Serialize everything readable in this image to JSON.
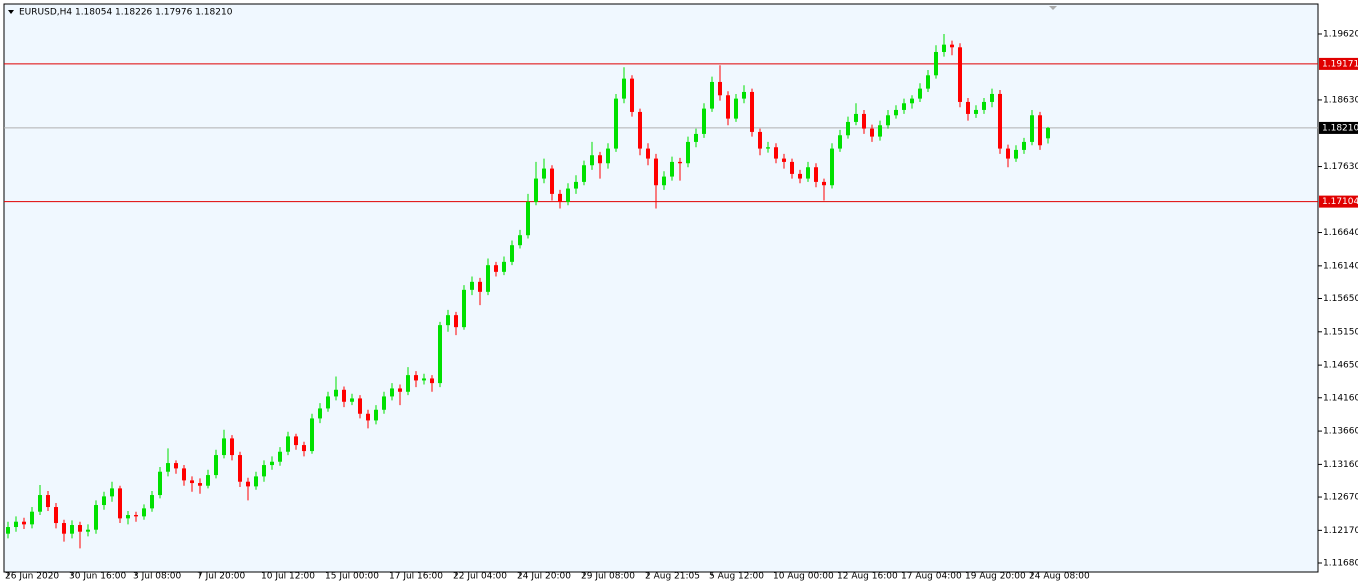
{
  "chart_data": {
    "type": "candlestick",
    "title": "EURUSD,H4  1.18054 1.18226 1.17976 1.18210",
    "up_color": "#00e000",
    "down_color": "#ff0000",
    "background": "#f0f8ff",
    "ylim": [
      1.1156,
      1.20055
    ],
    "yticks": [
      {
        "value": 1.1962,
        "label": "1.19620"
      },
      {
        "value": 1.1863,
        "label": "1.18630"
      },
      {
        "value": 1.1763,
        "label": "1.17630"
      },
      {
        "value": 1.1664,
        "label": "1.16640"
      },
      {
        "value": 1.1614,
        "label": "1.16140"
      },
      {
        "value": 1.1565,
        "label": "1.15650"
      },
      {
        "value": 1.1515,
        "label": "1.15150"
      },
      {
        "value": 1.1465,
        "label": "1.14650"
      },
      {
        "value": 1.1416,
        "label": "1.14160"
      },
      {
        "value": 1.1366,
        "label": "1.13660"
      },
      {
        "value": 1.1316,
        "label": "1.13160"
      },
      {
        "value": 1.1267,
        "label": "1.12670"
      },
      {
        "value": 1.1217,
        "label": "1.12170"
      },
      {
        "value": 1.1168,
        "label": "1.11680"
      }
    ],
    "hlines": [
      {
        "value": 1.19171,
        "label": "1.19171",
        "color": "#e00000"
      },
      {
        "value": 1.1821,
        "label": "1.18210",
        "color": "#b0b0b0",
        "label_color": "#000000"
      },
      {
        "value": 1.17104,
        "label": "1.17104",
        "color": "#e00000"
      }
    ],
    "categories": [
      "26 Jun 2020",
      null,
      null,
      null,
      null,
      null,
      null,
      null,
      "30 Jun 16:00",
      null,
      null,
      null,
      null,
      null,
      null,
      null,
      "3 Jul 08:00",
      null,
      null,
      null,
      null,
      null,
      null,
      null,
      "7 Jul 20:00",
      null,
      null,
      null,
      null,
      null,
      null,
      null,
      "10 Jul 12:00",
      null,
      null,
      null,
      null,
      null,
      null,
      null,
      "15 Jul 00:00",
      null,
      null,
      null,
      null,
      null,
      null,
      null,
      "17 Jul 16:00",
      null,
      null,
      null,
      null,
      null,
      null,
      null,
      "22 Jul 04:00",
      null,
      null,
      null,
      null,
      null,
      null,
      null,
      "24 Jul 20:00",
      null,
      null,
      null,
      null,
      null,
      null,
      null,
      "29 Jul 08:00",
      null,
      null,
      null,
      null,
      null,
      null,
      null,
      "2 Aug 21:05",
      null,
      null,
      null,
      null,
      null,
      null,
      null,
      "5 Aug 12:00",
      null,
      null,
      null,
      null,
      null,
      null,
      null,
      "10 Aug 00:00",
      null,
      null,
      null,
      null,
      null,
      null,
      null,
      "12 Aug 16:00",
      null,
      null,
      null,
      null,
      null,
      null,
      null,
      "17 Aug 04:00",
      null,
      null,
      null,
      null,
      null,
      null,
      null,
      "19 Aug 20:00",
      null,
      null,
      null,
      null,
      null,
      null,
      null,
      "24 Aug 08:00",
      null,
      null
    ],
    "values": [
      [
        1.1212,
        1.123,
        1.1205,
        1.1222
      ],
      [
        1.1222,
        1.1238,
        1.1215,
        1.123
      ],
      [
        1.123,
        1.1236,
        1.1219,
        1.1226
      ],
      [
        1.1226,
        1.1252,
        1.122,
        1.1245
      ],
      [
        1.1245,
        1.1285,
        1.124,
        1.127
      ],
      [
        1.127,
        1.1276,
        1.1246,
        1.1252
      ],
      [
        1.1252,
        1.1258,
        1.122,
        1.1228
      ],
      [
        1.1228,
        1.1233,
        1.12,
        1.1212
      ],
      [
        1.1212,
        1.1232,
        1.1205,
        1.1225
      ],
      [
        1.1225,
        1.123,
        1.119,
        1.1215
      ],
      [
        1.1215,
        1.1226,
        1.1208,
        1.1218
      ],
      [
        1.1218,
        1.1262,
        1.1212,
        1.1255
      ],
      [
        1.1255,
        1.1275,
        1.1248,
        1.1268
      ],
      [
        1.1268,
        1.129,
        1.126,
        1.128
      ],
      [
        1.128,
        1.1284,
        1.1228,
        1.1235
      ],
      [
        1.1235,
        1.1246,
        1.1226,
        1.124
      ],
      [
        1.124,
        1.1245,
        1.123,
        1.1238
      ],
      [
        1.1238,
        1.1256,
        1.1233,
        1.125
      ],
      [
        1.125,
        1.1276,
        1.1245,
        1.127
      ],
      [
        1.127,
        1.1312,
        1.1265,
        1.1305
      ],
      [
        1.1305,
        1.134,
        1.1298,
        1.1318
      ],
      [
        1.1318,
        1.1322,
        1.1302,
        1.131
      ],
      [
        1.131,
        1.1315,
        1.1284,
        1.1292
      ],
      [
        1.1292,
        1.1298,
        1.1275,
        1.1288
      ],
      [
        1.1288,
        1.1295,
        1.1272,
        1.1284
      ],
      [
        1.1284,
        1.1308,
        1.128,
        1.13
      ],
      [
        1.13,
        1.1338,
        1.1295,
        1.133
      ],
      [
        1.133,
        1.1368,
        1.1325,
        1.1355
      ],
      [
        1.1355,
        1.136,
        1.1322,
        1.133
      ],
      [
        1.133,
        1.1335,
        1.1282,
        1.129
      ],
      [
        1.129,
        1.1296,
        1.1262,
        1.1283
      ],
      [
        1.1283,
        1.1305,
        1.1278,
        1.1298
      ],
      [
        1.1298,
        1.1322,
        1.129,
        1.1315
      ],
      [
        1.1315,
        1.1328,
        1.1308,
        1.132
      ],
      [
        1.132,
        1.1342,
        1.1314,
        1.1335
      ],
      [
        1.1335,
        1.1365,
        1.133,
        1.1358
      ],
      [
        1.1358,
        1.1362,
        1.1338,
        1.1345
      ],
      [
        1.1345,
        1.135,
        1.1328,
        1.1336
      ],
      [
        1.1336,
        1.1392,
        1.1332,
        1.1385
      ],
      [
        1.1385,
        1.1408,
        1.1378,
        1.14
      ],
      [
        1.14,
        1.1425,
        1.1395,
        1.1418
      ],
      [
        1.1418,
        1.1448,
        1.1412,
        1.1428
      ],
      [
        1.1428,
        1.1433,
        1.1402,
        1.141
      ],
      [
        1.141,
        1.1422,
        1.1405,
        1.1415
      ],
      [
        1.1415,
        1.142,
        1.1385,
        1.1392
      ],
      [
        1.1392,
        1.1398,
        1.137,
        1.1382
      ],
      [
        1.1382,
        1.1405,
        1.1376,
        1.1398
      ],
      [
        1.1398,
        1.1425,
        1.1392,
        1.1418
      ],
      [
        1.1418,
        1.1438,
        1.1412,
        1.143
      ],
      [
        1.143,
        1.1436,
        1.1405,
        1.1425
      ],
      [
        1.1425,
        1.1462,
        1.142,
        1.145
      ],
      [
        1.145,
        1.1456,
        1.1432,
        1.1442
      ],
      [
        1.1442,
        1.1452,
        1.1436,
        1.1445
      ],
      [
        1.1445,
        1.145,
        1.1425,
        1.1438
      ],
      [
        1.1438,
        1.153,
        1.1432,
        1.1525
      ],
      [
        1.1525,
        1.1548,
        1.1515,
        1.154
      ],
      [
        1.154,
        1.1545,
        1.151,
        1.1522
      ],
      [
        1.1522,
        1.1585,
        1.1518,
        1.1578
      ],
      [
        1.1578,
        1.1598,
        1.157,
        1.159
      ],
      [
        1.159,
        1.1596,
        1.1555,
        1.1575
      ],
      [
        1.1575,
        1.1625,
        1.157,
        1.1615
      ],
      [
        1.1615,
        1.162,
        1.1598,
        1.1605
      ],
      [
        1.1605,
        1.1628,
        1.16,
        1.162
      ],
      [
        1.162,
        1.1652,
        1.1615,
        1.1645
      ],
      [
        1.1645,
        1.1668,
        1.164,
        1.166
      ],
      [
        1.166,
        1.1722,
        1.1655,
        1.171
      ],
      [
        1.171,
        1.177,
        1.1705,
        1.1745
      ],
      [
        1.1745,
        1.1775,
        1.1738,
        1.176
      ],
      [
        1.176,
        1.1765,
        1.1712,
        1.1722
      ],
      [
        1.1722,
        1.1728,
        1.17,
        1.171
      ],
      [
        1.171,
        1.1738,
        1.1705,
        1.173
      ],
      [
        1.173,
        1.175,
        1.1722,
        1.174
      ],
      [
        1.174,
        1.1772,
        1.1735,
        1.1765
      ],
      [
        1.1765,
        1.18,
        1.1758,
        1.178
      ],
      [
        1.178,
        1.1785,
        1.1745,
        1.1768
      ],
      [
        1.1768,
        1.1798,
        1.176,
        1.179
      ],
      [
        1.179,
        1.1872,
        1.1785,
        1.1865
      ],
      [
        1.1865,
        1.1912,
        1.1858,
        1.1895
      ],
      [
        1.1895,
        1.19,
        1.1838,
        1.1845
      ],
      [
        1.1845,
        1.185,
        1.178,
        1.179
      ],
      [
        1.179,
        1.1798,
        1.1765,
        1.1775
      ],
      [
        1.1775,
        1.1782,
        1.17,
        1.1735
      ],
      [
        1.1735,
        1.1756,
        1.1728,
        1.1748
      ],
      [
        1.1748,
        1.1778,
        1.1742,
        1.177
      ],
      [
        1.177,
        1.1776,
        1.1742,
        1.1768
      ],
      [
        1.1768,
        1.1808,
        1.1762,
        1.18
      ],
      [
        1.18,
        1.182,
        1.1792,
        1.1812
      ],
      [
        1.1812,
        1.1858,
        1.1806,
        1.185
      ],
      [
        1.185,
        1.1898,
        1.1845,
        1.189
      ],
      [
        1.189,
        1.1915,
        1.1862,
        1.187
      ],
      [
        1.187,
        1.1876,
        1.1825,
        1.1835
      ],
      [
        1.1835,
        1.1872,
        1.183,
        1.1865
      ],
      [
        1.1865,
        1.1885,
        1.1858,
        1.1875
      ],
      [
        1.1875,
        1.188,
        1.1808,
        1.1815
      ],
      [
        1.1815,
        1.182,
        1.178,
        1.179
      ],
      [
        1.179,
        1.18,
        1.1784,
        1.1792
      ],
      [
        1.1792,
        1.1798,
        1.1768,
        1.1775
      ],
      [
        1.1775,
        1.1782,
        1.176,
        1.177
      ],
      [
        1.177,
        1.1775,
        1.1745,
        1.1752
      ],
      [
        1.1752,
        1.1758,
        1.1738,
        1.1745
      ],
      [
        1.1745,
        1.177,
        1.174,
        1.1762
      ],
      [
        1.1762,
        1.1768,
        1.1732,
        1.174
      ],
      [
        1.174,
        1.1745,
        1.1712,
        1.1735
      ],
      [
        1.1735,
        1.1798,
        1.173,
        1.179
      ],
      [
        1.179,
        1.1818,
        1.1785,
        1.181
      ],
      [
        1.181,
        1.1838,
        1.1805,
        1.183
      ],
      [
        1.183,
        1.1858,
        1.1825,
        1.1842
      ],
      [
        1.1842,
        1.1848,
        1.1812,
        1.182
      ],
      [
        1.182,
        1.1826,
        1.18,
        1.1808
      ],
      [
        1.1808,
        1.1832,
        1.1802,
        1.1825
      ],
      [
        1.1825,
        1.1848,
        1.182,
        1.184
      ],
      [
        1.184,
        1.1855,
        1.1835,
        1.1848
      ],
      [
        1.1848,
        1.1865,
        1.1842,
        1.1858
      ],
      [
        1.1858,
        1.187,
        1.185,
        1.1865
      ],
      [
        1.1865,
        1.1888,
        1.186,
        1.188
      ],
      [
        1.188,
        1.1908,
        1.1875,
        1.19
      ],
      [
        1.19,
        1.1945,
        1.1895,
        1.1935
      ],
      [
        1.1935,
        1.1962,
        1.1928,
        1.1946
      ],
      [
        1.1946,
        1.1952,
        1.193,
        1.1942
      ],
      [
        1.1942,
        1.1948,
        1.1852,
        1.186
      ],
      [
        1.186,
        1.1866,
        1.1832,
        1.1842
      ],
      [
        1.1842,
        1.1855,
        1.1836,
        1.1848
      ],
      [
        1.1848,
        1.1866,
        1.1842,
        1.186
      ],
      [
        1.186,
        1.188,
        1.1852,
        1.1872
      ],
      [
        1.1872,
        1.1878,
        1.1782,
        1.179
      ],
      [
        1.179,
        1.1796,
        1.1762,
        1.1775
      ],
      [
        1.1775,
        1.1795,
        1.177,
        1.1788
      ],
      [
        1.1788,
        1.1806,
        1.1782,
        1.18
      ],
      [
        1.18,
        1.1848,
        1.1795,
        1.184
      ],
      [
        1.184,
        1.1845,
        1.1788,
        1.1795
      ],
      [
        1.18054,
        1.18226,
        1.17976,
        1.1821
      ]
    ]
  }
}
